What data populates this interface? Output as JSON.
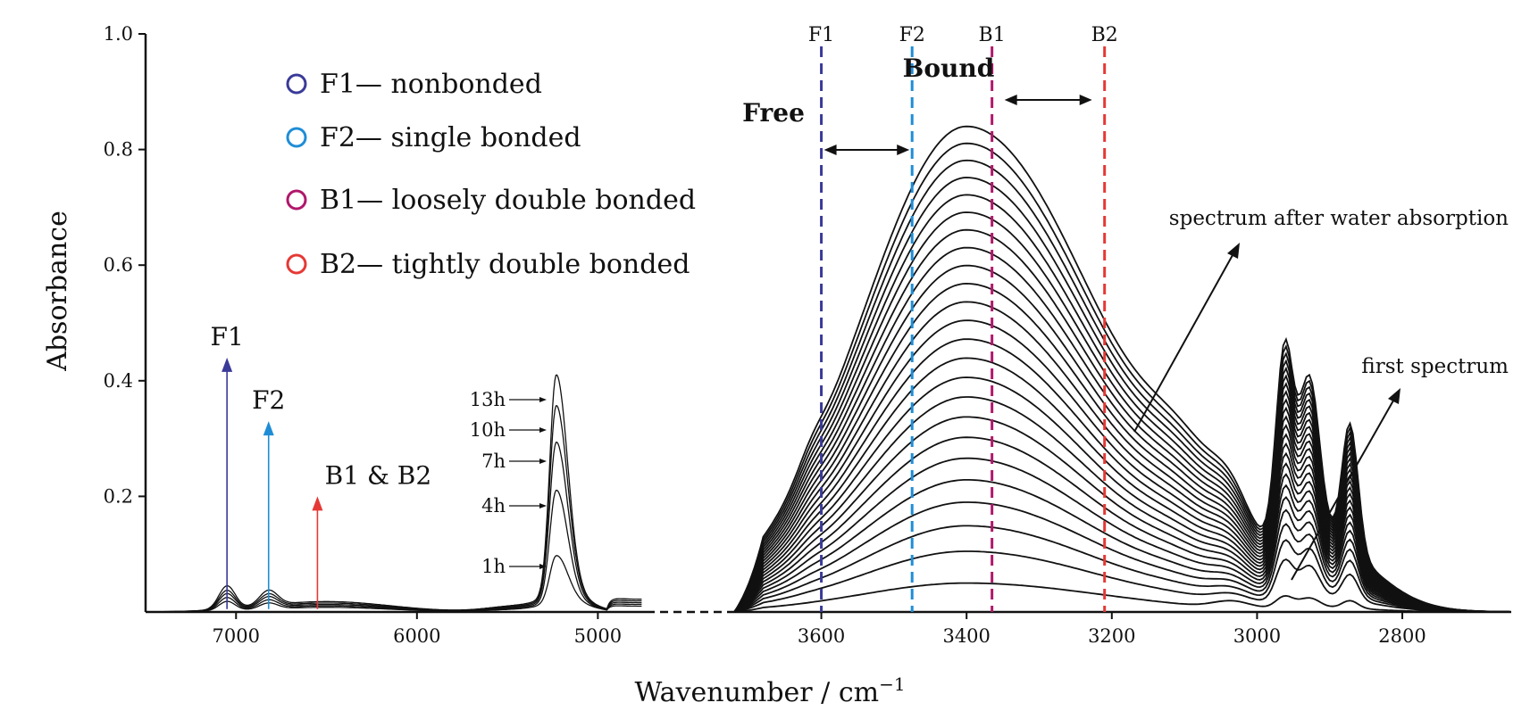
{
  "chart_data": {
    "type": "line",
    "ylabel": "Absorbance",
    "xlabel_main": "Wavenumber / cm",
    "xlabel_sup": "−1",
    "ylim": [
      0,
      1.0
    ],
    "yticks": [
      "0.2",
      "0.4",
      "0.6",
      "0.8",
      "1.0"
    ],
    "left_panel": {
      "xlim": [
        7500,
        4750
      ],
      "xticks": [
        "7000",
        "6000",
        "5000"
      ],
      "time_labels": [
        "13h",
        "10h",
        "7h",
        "4h",
        "1h"
      ],
      "peak_5200_heights": [
        0.38,
        0.33,
        0.27,
        0.19,
        0.08
      ],
      "peak_7050_heights": [
        0.04,
        0.033,
        0.028,
        0.022,
        0.016
      ],
      "arrows": [
        {
          "label": "F1",
          "x": 7050,
          "top": 0.44,
          "color": "#3a3a99"
        },
        {
          "label": "F2",
          "x": 6820,
          "top": 0.33,
          "color": "#1f8dd6"
        },
        {
          "label": "B1 & B2",
          "x": 6550,
          "top": 0.2,
          "color": "#e53935"
        }
      ]
    },
    "right_panel": {
      "xlim": [
        3720,
        2650
      ],
      "xticks": [
        "3600",
        "3400",
        "3200",
        "3000",
        "2800"
      ],
      "n_curves": 24,
      "oh_peak_first": 0.05,
      "oh_peak_last": 0.84,
      "ch_peaks_last": [
        {
          "x": 2960,
          "y": 0.455
        },
        {
          "x": 2925,
          "y": 0.385
        },
        {
          "x": 2870,
          "y": 0.315
        }
      ],
      "vertical_lines": [
        {
          "label": "F1",
          "x": 3600,
          "color": "#3a3a99"
        },
        {
          "label": "F2",
          "x": 3475,
          "color": "#1f8dd6"
        },
        {
          "label": "B1",
          "x": 3365,
          "color": "#b0176b"
        },
        {
          "label": "B2",
          "x": 3210,
          "color": "#e53935"
        }
      ],
      "free_label": "Free",
      "bound_label": "Bound",
      "annotation_after": "spectrum after water absorption",
      "annotation_first": "first spectrum"
    },
    "legend": [
      {
        "label": "F1— nonbonded",
        "color": "#3a3a99"
      },
      {
        "label": "F2— single bonded",
        "color": "#1f8dd6"
      },
      {
        "label": "B1— loosely double bonded",
        "color": "#b0176b"
      },
      {
        "label": "B2— tightly double bonded",
        "color": "#e53935"
      }
    ]
  }
}
